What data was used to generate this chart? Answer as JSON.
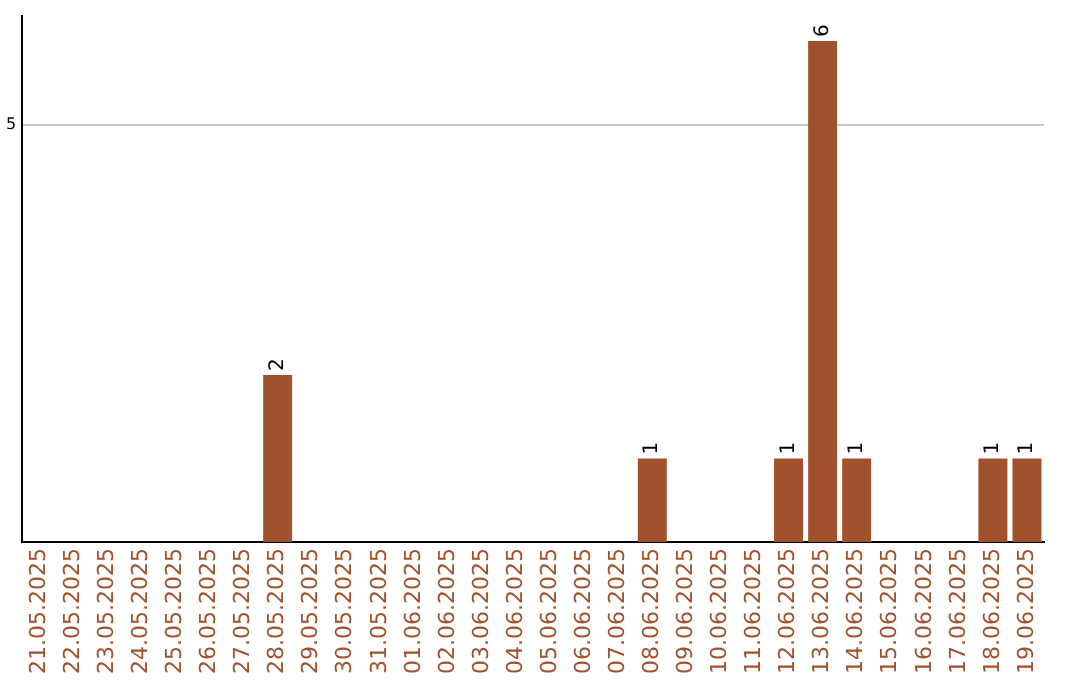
{
  "chart_data": {
    "type": "bar",
    "categories": [
      "21.05.2025",
      "22.05.2025",
      "23.05.2025",
      "24.05.2025",
      "25.05.2025",
      "26.05.2025",
      "27.05.2025",
      "28.05.2025",
      "29.05.2025",
      "30.05.2025",
      "31.05.2025",
      "01.06.2025",
      "02.06.2025",
      "03.06.2025",
      "04.06.2025",
      "05.06.2025",
      "06.06.2025",
      "07.06.2025",
      "08.06.2025",
      "09.06.2025",
      "10.06.2025",
      "11.06.2025",
      "12.06.2025",
      "13.06.2025",
      "14.06.2025",
      "15.06.2025",
      "16.06.2025",
      "17.06.2025",
      "18.06.2025",
      "19.06.2025"
    ],
    "values": [
      0,
      0,
      0,
      0,
      0,
      0,
      0,
      2,
      0,
      0,
      0,
      0,
      0,
      0,
      0,
      0,
      0,
      0,
      1,
      0,
      0,
      0,
      1,
      6,
      1,
      0,
      0,
      0,
      1,
      1
    ],
    "value_labels": [
      null,
      null,
      null,
      null,
      null,
      null,
      null,
      "2",
      null,
      null,
      null,
      null,
      null,
      null,
      null,
      null,
      null,
      null,
      "1",
      null,
      null,
      null,
      "1",
      "6",
      "1",
      null,
      null,
      null,
      "1",
      "1"
    ],
    "color": "#a0522d",
    "ylim": [
      0,
      6.3
    ],
    "yticks": [
      5
    ],
    "grid": "y",
    "legend": false
  }
}
